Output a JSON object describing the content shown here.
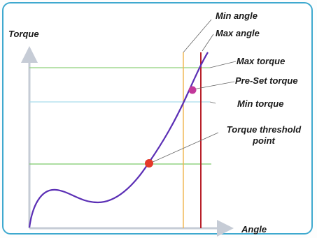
{
  "axes": {
    "y_label": "Torque",
    "x_label": "Angle"
  },
  "annotations": {
    "min_angle": "Min angle",
    "max_angle": "Max angle",
    "max_torque": "Max torque",
    "pre_set_torque": "Pre-Set torque",
    "min_torque": "Min torque",
    "threshold_line1": "Torque threshold",
    "threshold_line2": "point"
  },
  "colors": {
    "frame": "#3fa9cf",
    "axis": "#c6ccd6",
    "curve": "#5b2fb5",
    "max_torque_line": "#8fd07a",
    "min_torque_line": "#a9dcec",
    "threshold_line": "#7cc96b",
    "min_angle_line": "#f0b34a",
    "max_angle_line": "#b8202a",
    "pre_set_point": "#c2389a",
    "threshold_point": "#e43a2a"
  }
}
